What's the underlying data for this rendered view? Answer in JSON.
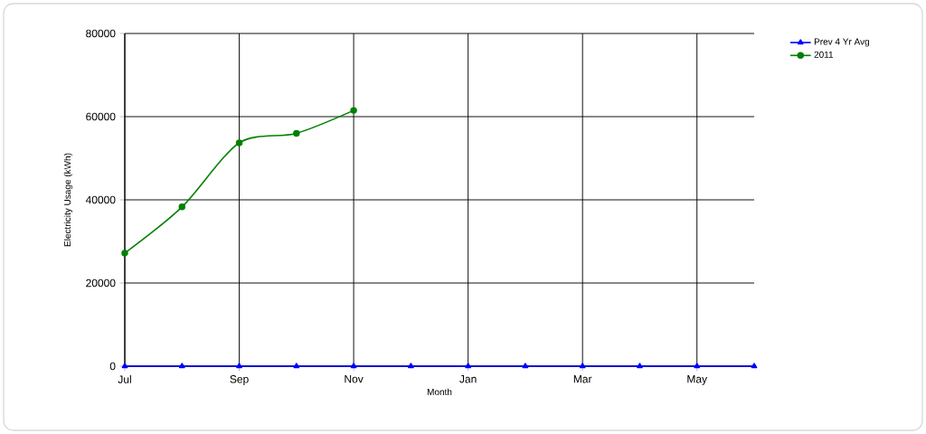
{
  "chart_data": {
    "type": "line",
    "xlabel": "Month",
    "ylabel": "Electricity Usage (kWh)",
    "categories": [
      "Jul",
      null,
      "Sep",
      null,
      "Nov",
      null,
      "Jan",
      null,
      "Mar",
      null,
      "May",
      null
    ],
    "series": [
      {
        "name": "Prev 4 Yr Avg",
        "color": "#0000ff",
        "marker": "triangle",
        "values": [
          0,
          0,
          0,
          0,
          0,
          0,
          0,
          0,
          0,
          0,
          0,
          0
        ]
      },
      {
        "name": "2011",
        "color": "#008000",
        "marker": "circle",
        "values": [
          27200,
          38300,
          53700,
          56000,
          61500,
          null,
          null,
          null,
          null,
          null,
          null,
          null
        ]
      }
    ],
    "ylim": [
      0,
      80000
    ],
    "yticks": [
      0,
      20000,
      40000,
      60000,
      80000
    ],
    "grid": true,
    "legend": "top right"
  }
}
